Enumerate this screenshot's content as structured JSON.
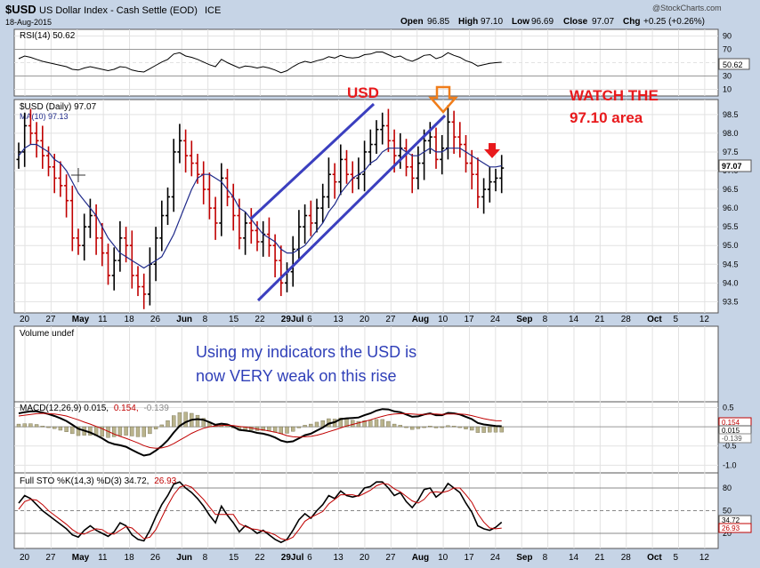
{
  "header": {
    "symbol": "$USD",
    "name": "US Dollar Index - Cash Settle (EOD)",
    "exchange": "ICE",
    "date": "18-Aug-2015",
    "watermark": "@StockCharts.com",
    "ohlc": {
      "open_label": "Open",
      "open": "96.85",
      "high_label": "High",
      "high": "97.10",
      "low_label": "Low",
      "low": "96.69",
      "close_label": "Close",
      "close": "97.07",
      "chg_label": "Chg",
      "chg": "+0.25 (+0.26%)"
    }
  },
  "colors": {
    "background": "#c6d4e6",
    "panel": "#ffffff",
    "up_bar": "#000000",
    "down_bar": "#c00000",
    "ma_line": "#1f2a8a",
    "channel": "#3b3fbf",
    "annotation_red": "#e8191c",
    "annotation_blue": "#2f3fb8",
    "arrow_orange": "#f07d1a",
    "histogram": "#b9b38c"
  },
  "panels": {
    "rsi": {
      "label": "RSI(14) 50.62",
      "ticks": [
        "90",
        "70",
        "50",
        "30",
        "10"
      ],
      "tag": "50.62"
    },
    "price": {
      "label_main": "$USD (Daily) 97.07",
      "label_ma": "MA(10) 97.13",
      "ticks": [
        "98.5",
        "98.0",
        "97.5",
        "97.0",
        "96.5",
        "96.0",
        "95.5",
        "95.0",
        "94.5",
        "94.0",
        "93.5"
      ],
      "tag": "97.07"
    },
    "volume": {
      "label": "Volume undef"
    },
    "macd": {
      "label_a": "MACD(12,26,9) 0.015,",
      "label_b": "0.154,",
      "label_c": "-0.139",
      "ticks": [
        "0.5",
        "0.0",
        "-0.5",
        "-1.0"
      ],
      "tags": [
        "0.154",
        "0.015",
        "-0.139"
      ]
    },
    "sto": {
      "label_a": "Full STO %K(14,3) %D(3) 34.72,",
      "label_b": "26.93",
      "ticks": [
        "80",
        "50",
        "20"
      ],
      "tags": [
        "34.72",
        "26.93"
      ]
    }
  },
  "axis": {
    "date_labels": [
      "20",
      "27",
      "May",
      "11",
      "18",
      "26",
      "Jun",
      "8",
      "15",
      "22",
      "29Jul",
      "6",
      "13",
      "20",
      "27",
      "Aug",
      "10",
      "17",
      "24",
      "Sep",
      "8",
      "14",
      "21",
      "28",
      "Oct",
      "5",
      "12"
    ]
  },
  "annotations": {
    "usd": "USD",
    "watch_line1": "WATCH THE",
    "watch_line2": "97.10 area",
    "comment_line1": "Using my indicators the USD is",
    "comment_line2": "now VERY weak on this rise"
  },
  "chart_data": {
    "type": "ohlc",
    "series": [
      {
        "name": "$USD (Daily)",
        "close": [
          97.5,
          98.2,
          98.0,
          97.8,
          97.4,
          97.1,
          96.8,
          96.6,
          96.2,
          95.2,
          95.0,
          95.5,
          95.8,
          95.2,
          94.8,
          94.2,
          94.6,
          95.2,
          95.0,
          94.2,
          93.9,
          93.7,
          94.5,
          95.2,
          95.8,
          96.3,
          97.5,
          97.8,
          97.4,
          97.2,
          96.9,
          96.5,
          96.0,
          95.6,
          96.8,
          96.3,
          95.8,
          95.2,
          95.6,
          95.4,
          95.1,
          95.3,
          95.0,
          94.6,
          94.0,
          94.3,
          94.9,
          95.5,
          95.8,
          95.6,
          96.0,
          96.3,
          96.9,
          96.7,
          97.3,
          96.9,
          96.8,
          96.9,
          97.5,
          97.7,
          98.1,
          98.2,
          97.8,
          97.4,
          97.6,
          97.1,
          96.8,
          97.2,
          97.8,
          97.9,
          97.3,
          97.6,
          98.3,
          97.9,
          97.7,
          97.2,
          96.9,
          96.3,
          96.5,
          96.7,
          96.8,
          97.07
        ]
      },
      {
        "name": "MA(10)",
        "values": [
          97.4,
          97.6,
          97.7,
          97.7,
          97.6,
          97.5,
          97.3,
          97.2,
          97.0,
          96.7,
          96.4,
          96.2,
          96.0,
          95.8,
          95.5,
          95.2,
          95.0,
          94.8,
          94.7,
          94.6,
          94.5,
          94.4,
          94.5,
          94.6,
          94.7,
          95.0,
          95.3,
          95.7,
          96.1,
          96.5,
          96.8,
          96.9,
          96.9,
          96.8,
          96.7,
          96.5,
          96.3,
          96.0,
          95.9,
          95.7,
          95.5,
          95.3,
          95.2,
          95.1,
          94.9,
          94.8,
          94.8,
          94.9,
          95.0,
          95.2,
          95.4,
          95.6,
          95.9,
          96.1,
          96.4,
          96.6,
          96.8,
          96.9,
          97.0,
          97.2,
          97.3,
          97.5,
          97.6,
          97.6,
          97.6,
          97.5,
          97.4,
          97.4,
          97.5,
          97.6,
          97.5,
          97.5,
          97.6,
          97.6,
          97.6,
          97.5,
          97.4,
          97.3,
          97.2,
          97.1,
          97.1,
          97.13
        ]
      },
      {
        "name": "RSI(14)",
        "values": [
          56,
          60,
          58,
          55,
          52,
          50,
          48,
          46,
          44,
          40,
          39,
          42,
          44,
          42,
          40,
          38,
          40,
          44,
          43,
          39,
          37,
          36,
          41,
          46,
          51,
          55,
          63,
          65,
          60,
          58,
          55,
          51,
          47,
          44,
          55,
          50,
          46,
          42,
          45,
          44,
          42,
          44,
          42,
          39,
          35,
          38,
          44,
          49,
          52,
          50,
          53,
          55,
          59,
          57,
          61,
          58,
          57,
          58,
          62,
          63,
          66,
          66,
          62,
          58,
          60,
          55,
          52,
          56,
          61,
          62,
          56,
          59,
          65,
          61,
          58,
          53,
          50,
          45,
          47,
          49,
          50,
          50.62
        ]
      },
      {
        "name": "MACD",
        "values": [
          0.35,
          0.38,
          0.4,
          0.4,
          0.37,
          0.33,
          0.28,
          0.22,
          0.15,
          0.05,
          -0.05,
          -0.1,
          -0.15,
          -0.22,
          -0.3,
          -0.4,
          -0.45,
          -0.48,
          -0.52,
          -0.6,
          -0.68,
          -0.75,
          -0.72,
          -0.62,
          -0.5,
          -0.35,
          -0.15,
          0.02,
          0.12,
          0.18,
          0.2,
          0.18,
          0.12,
          0.05,
          0.08,
          0.06,
          0.0,
          -0.08,
          -0.1,
          -0.12,
          -0.16,
          -0.18,
          -0.22,
          -0.28,
          -0.36,
          -0.4,
          -0.38,
          -0.3,
          -0.22,
          -0.18,
          -0.1,
          -0.02,
          0.08,
          0.12,
          0.2,
          0.22,
          0.23,
          0.24,
          0.3,
          0.35,
          0.42,
          0.46,
          0.45,
          0.4,
          0.38,
          0.32,
          0.26,
          0.27,
          0.32,
          0.35,
          0.3,
          0.3,
          0.36,
          0.35,
          0.32,
          0.26,
          0.2,
          0.1,
          0.06,
          0.04,
          0.02,
          0.015
        ]
      },
      {
        "name": "Signal",
        "values": [
          0.28,
          0.3,
          0.32,
          0.34,
          0.35,
          0.34,
          0.33,
          0.31,
          0.28,
          0.23,
          0.18,
          0.12,
          0.07,
          0.01,
          -0.05,
          -0.12,
          -0.19,
          -0.25,
          -0.3,
          -0.36,
          -0.42,
          -0.49,
          -0.54,
          -0.56,
          -0.55,
          -0.51,
          -0.44,
          -0.35,
          -0.26,
          -0.17,
          -0.1,
          -0.04,
          0.0,
          0.02,
          0.03,
          0.04,
          0.03,
          0.01,
          -0.01,
          -0.03,
          -0.06,
          -0.08,
          -0.11,
          -0.14,
          -0.18,
          -0.23,
          -0.26,
          -0.27,
          -0.26,
          -0.25,
          -0.22,
          -0.18,
          -0.13,
          -0.08,
          -0.03,
          0.02,
          0.06,
          0.1,
          0.14,
          0.18,
          0.23,
          0.27,
          0.31,
          0.33,
          0.34,
          0.34,
          0.33,
          0.32,
          0.32,
          0.33,
          0.33,
          0.32,
          0.33,
          0.33,
          0.33,
          0.32,
          0.29,
          0.25,
          0.21,
          0.18,
          0.16,
          0.154
        ]
      },
      {
        "name": "%K",
        "values": [
          60,
          70,
          66,
          58,
          50,
          44,
          38,
          32,
          26,
          18,
          15,
          24,
          30,
          24,
          20,
          16,
          22,
          34,
          30,
          18,
          12,
          10,
          24,
          42,
          58,
          70,
          85,
          88,
          80,
          74,
          66,
          56,
          44,
          34,
          56,
          44,
          34,
          22,
          30,
          26,
          20,
          24,
          18,
          12,
          8,
          12,
          24,
          38,
          46,
          40,
          50,
          58,
          70,
          66,
          76,
          70,
          68,
          70,
          80,
          82,
          88,
          88,
          80,
          70,
          74,
          62,
          54,
          64,
          78,
          80,
          68,
          74,
          86,
          80,
          74,
          60,
          48,
          30,
          26,
          24,
          28,
          34.72
        ]
      },
      {
        "name": "%D",
        "values": [
          52,
          62,
          65,
          64,
          58,
          50,
          44,
          38,
          32,
          25,
          20,
          19,
          23,
          26,
          25,
          20,
          19,
          24,
          29,
          27,
          20,
          13,
          15,
          25,
          41,
          57,
          71,
          81,
          84,
          81,
          73,
          65,
          55,
          45,
          45,
          45,
          45,
          33,
          29,
          26,
          25,
          23,
          21,
          18,
          13,
          11,
          15,
          25,
          36,
          41,
          45,
          49,
          59,
          65,
          71,
          71,
          71,
          69,
          73,
          77,
          83,
          86,
          85,
          79,
          75,
          69,
          63,
          60,
          65,
          74,
          75,
          74,
          76,
          80,
          80,
          71,
          61,
          46,
          35,
          27,
          26,
          26.93
        ]
      }
    ],
    "ylim_price": [
      93.2,
      98.9
    ],
    "ylim_rsi": [
      0,
      100
    ],
    "ylim_macd": [
      -1.2,
      0.65
    ],
    "ylim_sto": [
      0,
      100
    ],
    "grid": true
  }
}
